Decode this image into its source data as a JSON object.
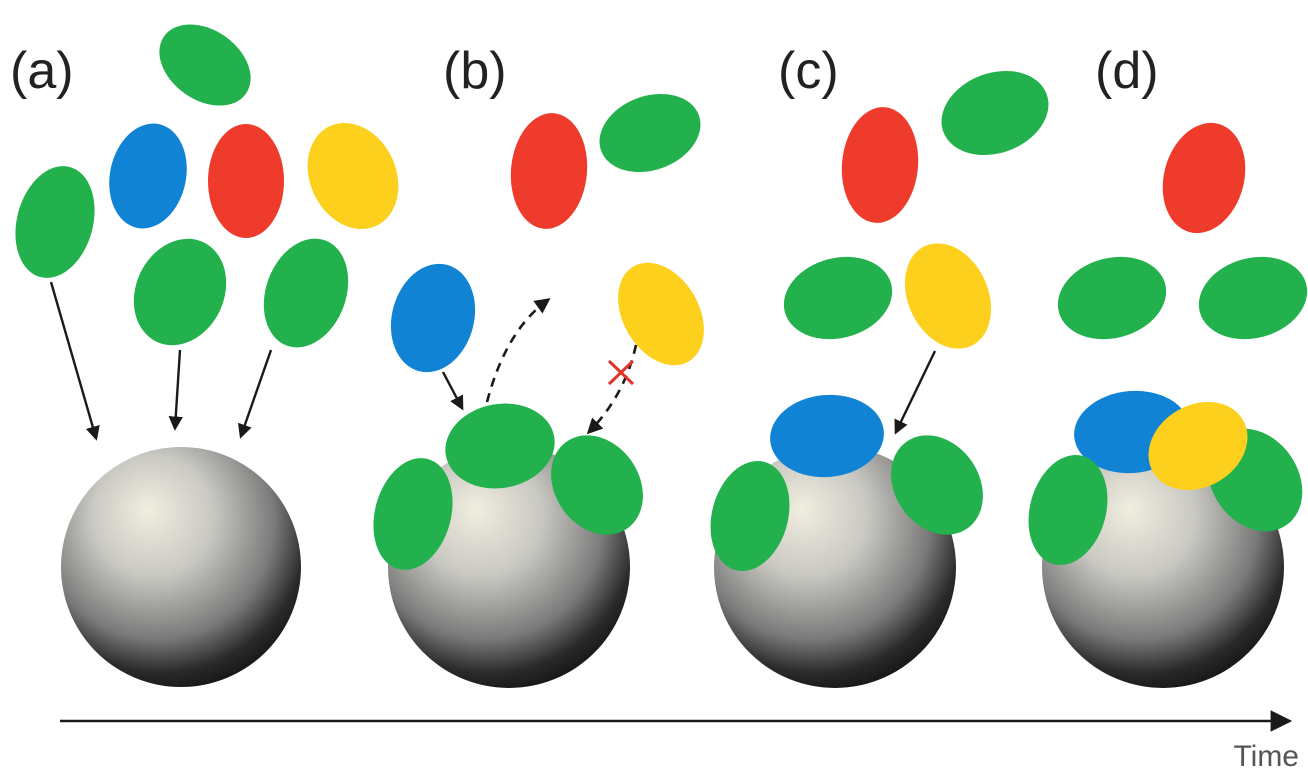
{
  "panels": [
    {
      "id": "a",
      "label": "(a)"
    },
    {
      "id": "b",
      "label": "(b)"
    },
    {
      "id": "c",
      "label": "(c)"
    },
    {
      "id": "d",
      "label": "(d)"
    }
  ],
  "time_axis": {
    "label": "Time"
  },
  "colors": {
    "green": "#22b14c",
    "blue": "#1083d4",
    "red": "#ef3b2c",
    "yellow": "#fcd01d",
    "blocked_marker": "#e0342a",
    "sphere_dark": "#161616",
    "sphere_light": "#f1eee0"
  },
  "icons": {
    "particle": "ellipse-particle-icon",
    "sphere": "sphere-icon",
    "blocked": "x-mark-icon"
  }
}
